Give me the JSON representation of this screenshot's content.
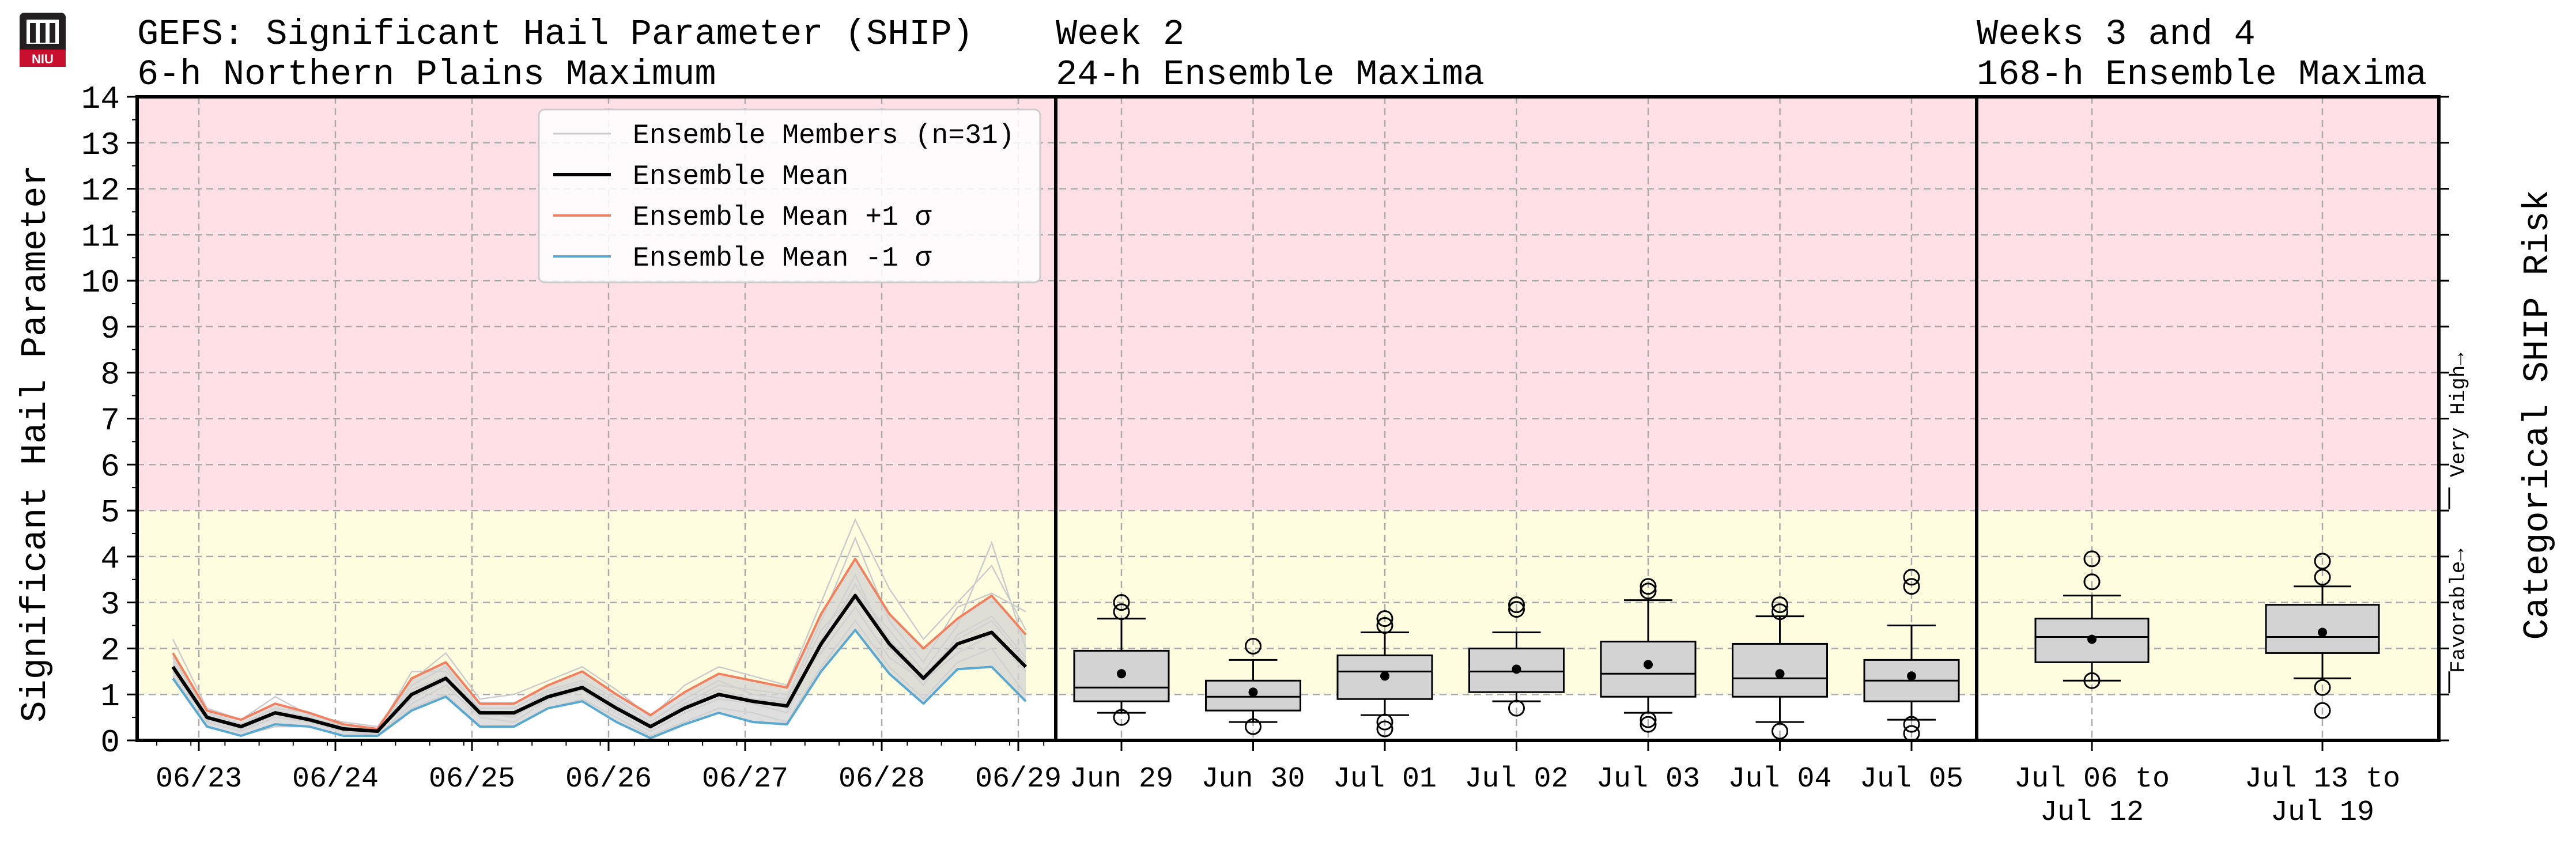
{
  "logo": {
    "text": "NIU"
  },
  "titles": {
    "panel1_line1": "GEFS: Significant Hail Parameter (SHIP)",
    "panel1_line2": "6-h Northern Plains Maximum",
    "panel2_line1": "Week 2",
    "panel2_line2": "24-h Ensemble Maxima",
    "panel3_line1": "Weeks 3 and 4",
    "panel3_line2": "168-h Ensemble Maxima"
  },
  "ylabel_left": "Significant Hail Parameter",
  "ylabel_right": "Categorical SHIP Risk",
  "risk_labels": {
    "favorable": "Favorable→",
    "very_high": "Very High→"
  },
  "colors": {
    "very_high_band": "#ffe0e6",
    "favorable_band": "#fffde0",
    "mean": "#000000",
    "plus_sigma": "#f08060",
    "minus_sigma": "#5aa8d0",
    "members": "#cccccc",
    "spread_fill": "#d3d3d3"
  },
  "legend": {
    "members": "Ensemble Members (n=31)",
    "mean": "Ensemble Mean",
    "plus_sigma": "Ensemble Mean +1 σ",
    "minus_sigma": "Ensemble Mean -1 σ"
  },
  "chart_data": [
    {
      "type": "line",
      "title": "GEFS: Significant Hail Parameter (SHIP) 6-h Northern Plains Maximum",
      "ylabel": "Significant Hail Parameter",
      "ylim": [
        0,
        14
      ],
      "yticks": [
        "0",
        "1",
        "2",
        "3",
        "4",
        "5",
        "6",
        "7",
        "8",
        "9",
        "10",
        "11",
        "12",
        "13",
        "14"
      ],
      "x_tick_labels": [
        "06/23",
        "06/24",
        "06/25",
        "06/26",
        "06/27",
        "06/28",
        "06/29"
      ],
      "grid": true,
      "legend_position": "top-center",
      "bands": [
        {
          "name": "Favorable",
          "from": 1,
          "to": 5
        },
        {
          "name": "Very High",
          "from": 5,
          "to": 14
        }
      ],
      "series": [
        {
          "name": "Ensemble Mean",
          "values": [
            1.6,
            0.5,
            0.3,
            0.6,
            0.45,
            0.25,
            0.2,
            1.0,
            1.35,
            0.6,
            0.6,
            0.95,
            1.15,
            0.7,
            0.3,
            0.7,
            1.0,
            0.85,
            0.75,
            2.1,
            3.15,
            2.1,
            1.35,
            2.1,
            2.35,
            1.6
          ]
        },
        {
          "name": "Ensemble Mean +1 σ",
          "values": [
            1.9,
            0.65,
            0.45,
            0.8,
            0.6,
            0.35,
            0.25,
            1.35,
            1.7,
            0.8,
            0.8,
            1.2,
            1.5,
            1.0,
            0.55,
            1.05,
            1.45,
            1.3,
            1.15,
            2.75,
            3.95,
            2.75,
            2.0,
            2.65,
            3.15,
            2.3
          ]
        },
        {
          "name": "Ensemble Mean -1 σ",
          "values": [
            1.35,
            0.3,
            0.1,
            0.35,
            0.3,
            0.1,
            0.1,
            0.65,
            0.95,
            0.3,
            0.3,
            0.7,
            0.85,
            0.4,
            0.05,
            0.35,
            0.6,
            0.4,
            0.35,
            1.5,
            2.4,
            1.45,
            0.8,
            1.55,
            1.6,
            0.85
          ]
        }
      ],
      "members": [
        [
          2.2,
          0.7,
          0.45,
          0.95,
          0.55,
          0.4,
          0.3,
          1.3,
          1.9,
          0.9,
          1.0,
          1.3,
          1.6,
          1.1,
          0.5,
          1.2,
          1.6,
          1.4,
          1.2,
          3.0,
          4.8,
          3.3,
          2.2,
          3.0,
          3.8,
          2.4
        ],
        [
          1.7,
          0.4,
          0.2,
          0.5,
          0.4,
          0.2,
          0.1,
          0.8,
          1.2,
          0.5,
          0.4,
          0.9,
          1.1,
          0.6,
          0.2,
          0.6,
          0.9,
          0.8,
          0.6,
          2.2,
          3.6,
          2.0,
          1.2,
          2.3,
          2.7,
          1.8
        ],
        [
          1.4,
          0.3,
          0.1,
          0.3,
          0.3,
          0.1,
          0.1,
          0.7,
          1.0,
          0.3,
          0.3,
          0.7,
          0.9,
          0.5,
          0.1,
          0.4,
          0.7,
          0.6,
          0.4,
          1.6,
          2.6,
          1.6,
          0.9,
          1.7,
          2.0,
          1.0
        ],
        [
          1.9,
          0.6,
          0.35,
          0.7,
          0.6,
          0.3,
          0.2,
          1.5,
          1.5,
          0.7,
          0.7,
          1.1,
          1.3,
          0.9,
          0.4,
          0.9,
          1.3,
          1.0,
          0.9,
          2.6,
          4.4,
          2.6,
          1.7,
          2.9,
          3.2,
          2.8
        ],
        [
          1.5,
          0.45,
          0.25,
          0.55,
          0.4,
          0.2,
          0.15,
          1.1,
          1.4,
          0.6,
          0.5,
          1.0,
          1.2,
          0.7,
          0.25,
          0.75,
          1.1,
          0.9,
          0.8,
          2.4,
          3.2,
          2.4,
          1.5,
          2.5,
          4.3,
          2.0
        ],
        [
          1.6,
          0.5,
          0.3,
          0.6,
          0.5,
          0.3,
          0.2,
          1.2,
          1.6,
          0.65,
          0.6,
          1.05,
          1.25,
          0.8,
          0.3,
          0.8,
          1.2,
          1.1,
          1.0,
          1.9,
          2.9,
          1.8,
          1.3,
          1.9,
          2.3,
          1.5
        ],
        [
          1.8,
          0.55,
          0.25,
          0.65,
          0.5,
          0.25,
          0.2,
          0.9,
          1.3,
          0.55,
          0.55,
          0.9,
          1.15,
          0.75,
          0.35,
          0.7,
          1.0,
          0.9,
          0.85,
          2.0,
          3.4,
          2.2,
          1.4,
          2.2,
          2.6,
          1.7
        ]
      ]
    },
    {
      "type": "box",
      "title": "Week 2 24-h Ensemble Maxima",
      "categories": [
        "Jun 29",
        "Jun 30",
        "Jul 01",
        "Jul 02",
        "Jul 03",
        "Jul 04",
        "Jul 05"
      ],
      "ylim": [
        0,
        14
      ],
      "boxes": [
        {
          "whislo": 0.6,
          "q1": 0.85,
          "med": 1.15,
          "q3": 1.95,
          "whishi": 2.65,
          "mean": 1.45,
          "fliers": [
            2.8,
            3.0,
            0.5
          ]
        },
        {
          "whislo": 0.4,
          "q1": 0.65,
          "med": 0.95,
          "q3": 1.3,
          "whishi": 1.75,
          "mean": 1.05,
          "fliers": [
            2.05,
            0.3
          ]
        },
        {
          "whislo": 0.55,
          "q1": 0.9,
          "med": 1.5,
          "q3": 1.85,
          "whishi": 2.35,
          "mean": 1.4,
          "fliers": [
            2.5,
            2.65,
            0.4,
            0.25
          ]
        },
        {
          "whislo": 0.85,
          "q1": 1.05,
          "med": 1.5,
          "q3": 2.0,
          "whishi": 2.35,
          "mean": 1.55,
          "fliers": [
            2.85,
            2.95,
            0.7
          ]
        },
        {
          "whislo": 0.6,
          "q1": 0.95,
          "med": 1.45,
          "q3": 2.15,
          "whishi": 3.05,
          "mean": 1.65,
          "fliers": [
            3.25,
            3.35,
            0.45,
            0.35
          ]
        },
        {
          "whislo": 0.4,
          "q1": 0.95,
          "med": 1.35,
          "q3": 2.1,
          "whishi": 2.7,
          "mean": 1.45,
          "fliers": [
            2.8,
            2.95,
            0.2
          ]
        },
        {
          "whislo": 0.45,
          "q1": 0.85,
          "med": 1.3,
          "q3": 1.75,
          "whishi": 2.5,
          "mean": 1.4,
          "fliers": [
            3.35,
            3.55,
            0.35,
            0.15
          ]
        }
      ]
    },
    {
      "type": "box",
      "title": "Weeks 3 and 4 168-h Ensemble Maxima",
      "categories": [
        "Jul 06 to\nJul 12",
        "Jul 13 to\nJul 19"
      ],
      "ylim": [
        0,
        14
      ],
      "boxes": [
        {
          "whislo": 1.3,
          "q1": 1.7,
          "med": 2.25,
          "q3": 2.65,
          "whishi": 3.15,
          "mean": 2.2,
          "fliers": [
            3.45,
            3.95,
            1.3
          ]
        },
        {
          "whislo": 1.35,
          "q1": 1.9,
          "med": 2.25,
          "q3": 2.95,
          "whishi": 3.35,
          "mean": 2.35,
          "fliers": [
            3.55,
            3.9,
            1.15,
            0.65
          ]
        }
      ]
    }
  ]
}
